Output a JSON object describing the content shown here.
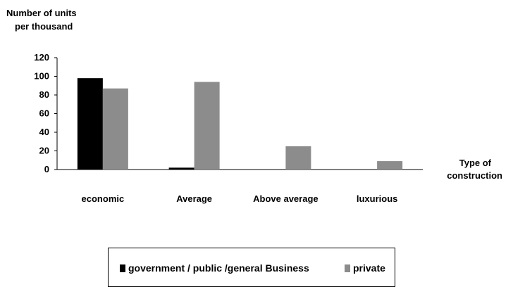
{
  "chart_data": {
    "type": "bar",
    "ylabel": [
      "Number of units",
      "per thousand"
    ],
    "xlabel": [
      "Type of",
      "construction"
    ],
    "categories": [
      "economic",
      "Average",
      "Above average",
      "luxurious"
    ],
    "series": [
      {
        "name": "government / public /general Business",
        "color": "#000000",
        "values": [
          98,
          2,
          0,
          0
        ]
      },
      {
        "name": "private",
        "color": "#8c8c8c",
        "values": [
          87,
          94,
          25,
          9
        ]
      }
    ],
    "yticks": [
      0,
      20,
      40,
      60,
      80,
      100,
      120
    ],
    "ylim": [
      0,
      120
    ],
    "grid": false,
    "legend_position": "bottom"
  }
}
